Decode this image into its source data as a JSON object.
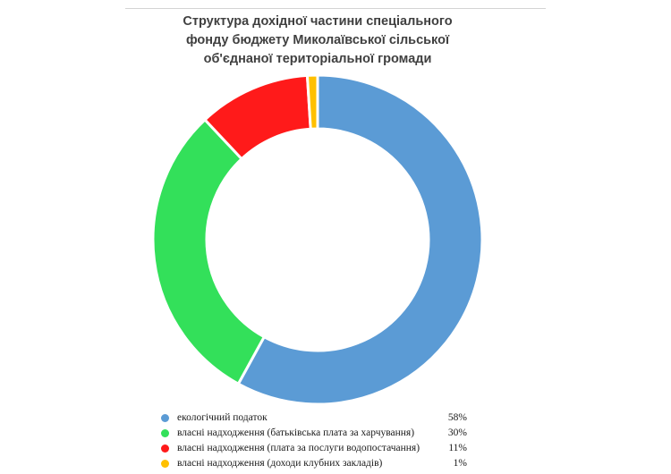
{
  "chart_data": {
    "type": "pie",
    "title_lines": [
      "Структура дохідної частини спеціального",
      "фонду  бюджету Миколаївської сільської",
      "об'єднаної територіальної громади"
    ],
    "legend_position": "bottom",
    "series": [
      {
        "name": "екологічний податок",
        "value": 58,
        "display": "58%",
        "color": "#5b9bd5"
      },
      {
        "name": "власні надходження (батьківська плата за харчування)",
        "value": 30,
        "display": "30%",
        "color": "#33e05a"
      },
      {
        "name": "власні надходження (плата за послуги водопостачання)",
        "value": 11,
        "display": "11%",
        "color": "#ff1a1a"
      },
      {
        "name": "власні надходження (доходи клубних закладів)",
        "value": 1,
        "display": "1%",
        "color": "#ffc000"
      }
    ]
  }
}
